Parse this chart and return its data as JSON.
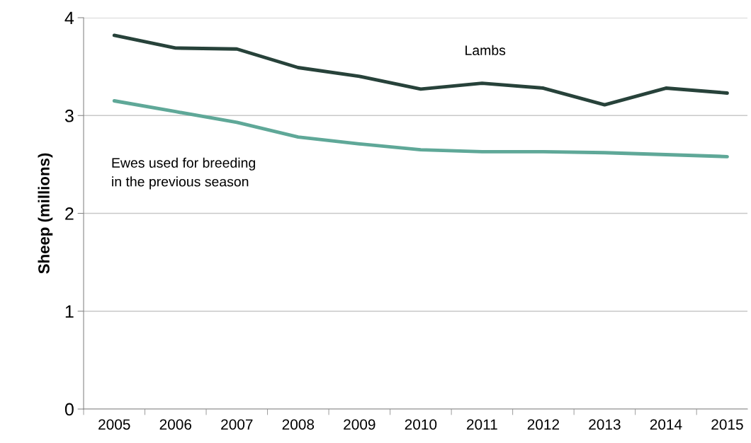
{
  "chart_data": {
    "type": "line",
    "ylabel": "Sheep (millions)",
    "categories": [
      "2005",
      "2006",
      "2007",
      "2008",
      "2009",
      "2010",
      "2011",
      "2012",
      "2013",
      "2014",
      "2015"
    ],
    "series": [
      {
        "name": "Lambs",
        "color": "#27423a",
        "values": [
          3.82,
          3.69,
          3.68,
          3.49,
          3.4,
          3.27,
          3.33,
          3.28,
          3.11,
          3.28,
          3.23
        ]
      },
      {
        "name": "Ewes used for breeding\nin the previous season",
        "color": "#5fa898",
        "values": [
          3.15,
          3.04,
          2.93,
          2.78,
          2.71,
          2.65,
          2.63,
          2.63,
          2.62,
          2.6,
          2.58
        ]
      }
    ],
    "ylim": [
      0,
      4
    ],
    "yticks": [
      0,
      1,
      2,
      3,
      4
    ],
    "grid": "y",
    "legend": false,
    "marker": "none",
    "line_style": "solid"
  }
}
